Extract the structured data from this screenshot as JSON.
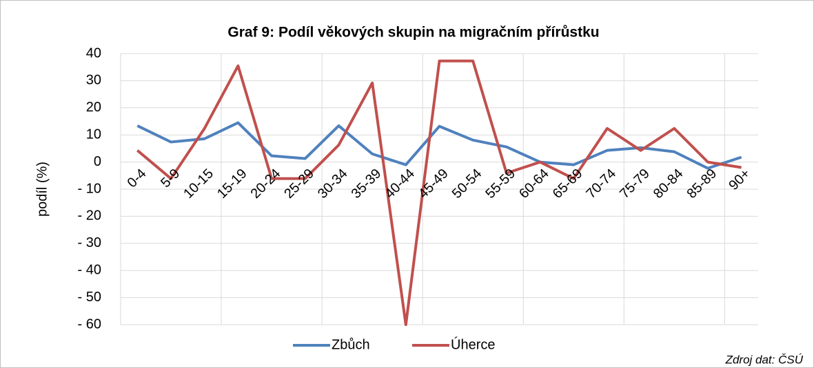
{
  "chart_data": {
    "type": "line",
    "title": "Graf 9: Podíl věkových skupin na migračním přírůstku",
    "y_label": "podíl (%)",
    "source": "Zdroj dat: ČSÚ",
    "categories": [
      "0-4",
      "5-9",
      "10-15",
      "15-19",
      "20-24",
      "25-29",
      "30-34",
      "35-39",
      "40-44",
      "45-49",
      "50-54",
      "55-59",
      "60-64",
      "65-69",
      "70-74",
      "75-79",
      "80-84",
      "85-89",
      "90+"
    ],
    "series": [
      {
        "name": "Zbůch",
        "color": "#4f81bd",
        "values": [
          13.4,
          7.4,
          8.6,
          14.5,
          2.3,
          1.3,
          13.4,
          3,
          -1,
          13.2,
          8.1,
          5.6,
          0,
          -1,
          4.3,
          5.3,
          3.8,
          -2.3,
          1.8
        ]
      },
      {
        "name": "Úherce",
        "color": "#c0504d",
        "values": [
          4.3,
          -6.1,
          12.4,
          35.5,
          -6.1,
          -6.1,
          6.3,
          29.2,
          -60,
          37.3,
          37.3,
          -4.1,
          0,
          -6.1,
          12.4,
          4.3,
          12.4,
          0,
          -2
        ]
      }
    ],
    "ylim": [
      -60,
      40
    ],
    "yticks": [
      40,
      30,
      20,
      10,
      0,
      {
        "value": -10,
        "label": "- 10"
      },
      {
        "value": -20,
        "label": "- 20"
      },
      {
        "value": -30,
        "label": "- 30"
      },
      {
        "value": -40,
        "label": "- 40"
      },
      {
        "value": -50,
        "label": "- 50"
      },
      {
        "value": -60,
        "label": "- 60"
      }
    ],
    "grid": true,
    "legend": "bottom"
  }
}
